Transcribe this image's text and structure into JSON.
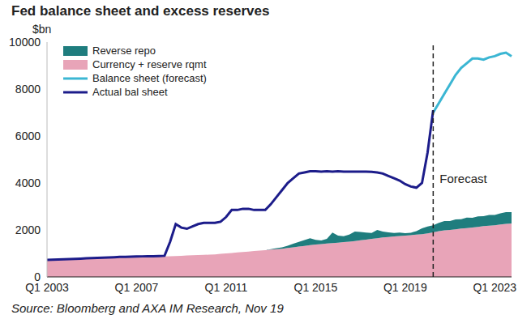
{
  "chart_data": {
    "type": "area",
    "title": "Fed balance sheet and excess reserves",
    "y_label": "$bn",
    "source": "Source: Bloomberg and AXA IM Research, Nov 19",
    "categories": [
      "Q1 2003",
      null,
      null,
      null,
      null,
      null,
      null,
      null,
      null,
      null,
      null,
      null,
      null,
      null,
      null,
      null,
      "Q1 2007",
      null,
      null,
      null,
      null,
      null,
      null,
      null,
      null,
      null,
      null,
      null,
      null,
      null,
      null,
      null,
      "Q1 2011",
      null,
      null,
      null,
      null,
      null,
      null,
      null,
      null,
      null,
      null,
      null,
      null,
      null,
      null,
      null,
      "Q1 2015",
      null,
      null,
      null,
      null,
      null,
      null,
      null,
      null,
      null,
      null,
      null,
      null,
      null,
      null,
      null,
      "Q1 2019",
      null,
      null,
      null,
      null,
      null,
      null,
      null,
      null,
      null,
      null,
      null,
      null,
      null,
      null,
      null,
      "Q1 2023",
      null,
      null,
      null
    ],
    "series": [
      {
        "name": "Reverse repo",
        "type": "area",
        "color": "#1f7d7e",
        "values": [
          0,
          0,
          0,
          0,
          0,
          0,
          0,
          0,
          0,
          0,
          0,
          0,
          0,
          0,
          0,
          0,
          0,
          0,
          0,
          0,
          0,
          0,
          0,
          0,
          0,
          0,
          0,
          0,
          0,
          0,
          0,
          0,
          0,
          0,
          0,
          0,
          0,
          0,
          0,
          0,
          20,
          40,
          60,
          100,
          150,
          200,
          250,
          300,
          200,
          150,
          200,
          450,
          300,
          250,
          300,
          400,
          350,
          300,
          250,
          350,
          250,
          200,
          150,
          150,
          100,
          100,
          150,
          250,
          300,
          300,
          350,
          400,
          380,
          420,
          400,
          450,
          420,
          450,
          430,
          460,
          440,
          480,
          500,
          480
        ]
      },
      {
        "name": "Currency + reserve rqmt",
        "type": "area",
        "color": "#e8a4b8",
        "values": [
          700,
          710,
          720,
          730,
          740,
          750,
          760,
          770,
          780,
          790,
          800,
          810,
          820,
          825,
          830,
          835,
          840,
          845,
          850,
          855,
          860,
          870,
          880,
          890,
          900,
          910,
          920,
          930,
          940,
          950,
          960,
          980,
          1000,
          1020,
          1040,
          1060,
          1080,
          1100,
          1120,
          1140,
          1160,
          1180,
          1200,
          1230,
          1260,
          1290,
          1320,
          1350,
          1380,
          1400,
          1420,
          1440,
          1460,
          1480,
          1500,
          1530,
          1560,
          1590,
          1620,
          1650,
          1680,
          1700,
          1720,
          1740,
          1760,
          1780,
          1800,
          1820,
          1850,
          1900,
          1950,
          1980,
          2000,
          2030,
          2060,
          2080,
          2100,
          2130,
          2160,
          2180,
          2200,
          2230,
          2260,
          2280
        ]
      },
      {
        "name": "Balance sheet (forecast)",
        "type": "line",
        "color": "#3bb6d3",
        "line_style": "solid",
        "values": [
          null,
          null,
          null,
          null,
          null,
          null,
          null,
          null,
          null,
          null,
          null,
          null,
          null,
          null,
          null,
          null,
          null,
          null,
          null,
          null,
          null,
          null,
          null,
          null,
          null,
          null,
          null,
          null,
          null,
          null,
          null,
          null,
          null,
          null,
          null,
          null,
          null,
          null,
          null,
          null,
          null,
          null,
          null,
          null,
          null,
          null,
          null,
          null,
          null,
          null,
          null,
          null,
          null,
          null,
          null,
          null,
          null,
          null,
          null,
          null,
          null,
          null,
          null,
          null,
          null,
          null,
          null,
          null,
          null,
          7000,
          7400,
          7800,
          8200,
          8600,
          8900,
          9100,
          9300,
          9300,
          9250,
          9350,
          9400,
          9500,
          9550,
          9400
        ]
      },
      {
        "name": "Actual bal sheet",
        "type": "line",
        "color": "#1c1c8a",
        "line_style": "solid",
        "values": [
          720,
          730,
          740,
          750,
          760,
          770,
          780,
          790,
          800,
          810,
          820,
          830,
          840,
          850,
          855,
          860,
          870,
          875,
          880,
          880,
          890,
          900,
          1500,
          2250,
          2100,
          2050,
          2150,
          2250,
          2300,
          2300,
          2300,
          2350,
          2550,
          2850,
          2850,
          2900,
          2900,
          2850,
          2850,
          2850,
          3100,
          3400,
          3700,
          4000,
          4200,
          4400,
          4450,
          4500,
          4500,
          4480,
          4500,
          4480,
          4500,
          4480,
          4480,
          4480,
          4480,
          4480,
          4470,
          4450,
          4400,
          4300,
          4200,
          4100,
          3950,
          3850,
          3800,
          4000,
          5300,
          7100,
          null,
          null,
          null,
          null,
          null,
          null,
          null,
          null,
          null,
          null,
          null,
          null,
          null,
          null
        ]
      }
    ],
    "annotations": [
      {
        "text": "Forecast",
        "x": 69,
        "line_style": "dashed"
      }
    ],
    "ylim": [
      0,
      10000
    ],
    "yticks": [
      0,
      2000,
      4000,
      6000,
      8000,
      10000
    ],
    "stacked": true,
    "grid": false,
    "legend": "top-left"
  }
}
